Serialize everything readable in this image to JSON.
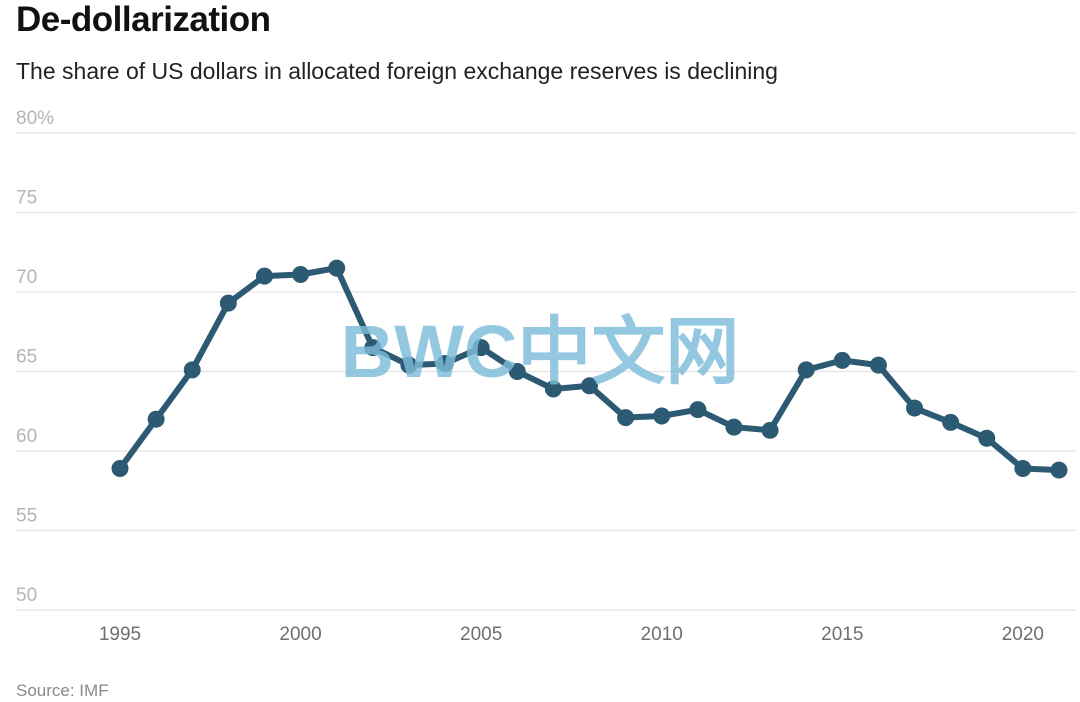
{
  "title": "De-dollarization",
  "subtitle": "The share of US dollars in allocated foreign exchange reserves is declining",
  "source": "Source: IMF",
  "watermark": "BWC中文网",
  "colors": {
    "line": "#2c5a72",
    "grid": "#e4e4e4",
    "watermark": "#7dbcd9"
  },
  "chart_data": {
    "type": "line",
    "title": "De-dollarization",
    "subtitle": "The share of US dollars in allocated foreign exchange reserves is declining",
    "xlabel": "",
    "ylabel": "",
    "ylim": [
      50,
      80
    ],
    "xlim": [
      1995,
      2021
    ],
    "grid": true,
    "y_ticks": [
      50,
      55,
      60,
      65,
      70,
      75,
      80
    ],
    "y_tick_labels": [
      "50",
      "55",
      "60",
      "65",
      "70",
      "75",
      "80%"
    ],
    "x_ticks": [
      1995,
      2000,
      2005,
      2010,
      2015,
      2020
    ],
    "x_tick_labels": [
      "1995",
      "2000",
      "2005",
      "2010",
      "2015",
      "2020"
    ],
    "series": [
      {
        "x": [
          1995,
          1996,
          1997,
          1998,
          1999,
          2000,
          2001,
          2002,
          2003,
          2004,
          2005,
          2006,
          2007,
          2008,
          2009,
          2010,
          2011,
          2012,
          2013,
          2014,
          2015,
          2016,
          2017,
          2018,
          2019,
          2020,
          2021
        ],
        "values": [
          58.9,
          62.0,
          65.1,
          69.3,
          71.0,
          71.1,
          71.5,
          66.5,
          65.4,
          65.5,
          66.5,
          65.0,
          63.9,
          64.1,
          62.1,
          62.2,
          62.6,
          61.5,
          61.3,
          65.1,
          65.7,
          65.4,
          62.7,
          61.8,
          60.8,
          58.9,
          58.8
        ]
      }
    ]
  }
}
